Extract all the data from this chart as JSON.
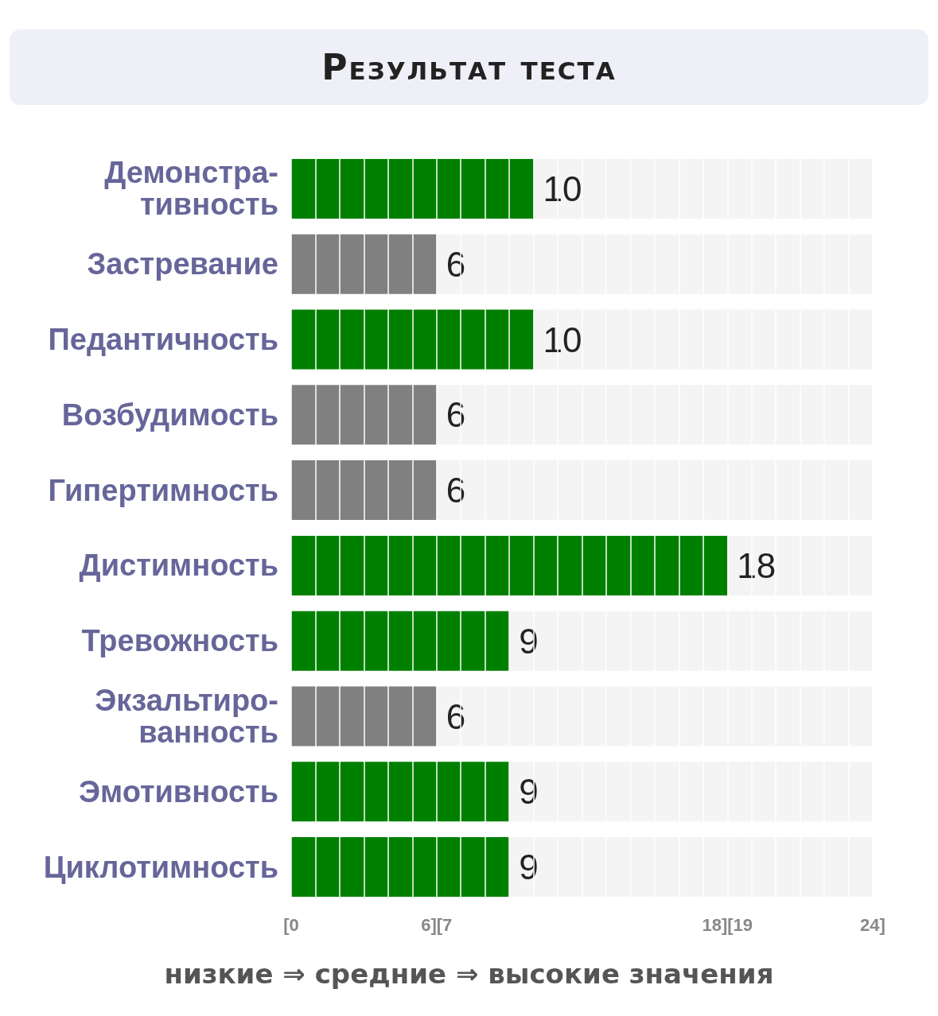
{
  "chart_data": {
    "type": "bar",
    "orientation": "horizontal",
    "title": "Результат теста",
    "categories": [
      "Демонстра-\nтивность",
      "Застревание",
      "Педантичность",
      "Возбудимость",
      "Гипертимность",
      "Дистимность",
      "Тревожность",
      "Экзальтиро-\nванность",
      "Эмотивность",
      "Циклотимность"
    ],
    "values": [
      10,
      6,
      10,
      6,
      6,
      18,
      9,
      6,
      9,
      9
    ],
    "colors": [
      "#008000",
      "#808080",
      "#008000",
      "#808080",
      "#808080",
      "#008000",
      "#008000",
      "#808080",
      "#008000",
      "#008000"
    ],
    "xlim": [
      0,
      24
    ],
    "xticks": [
      {
        "value": 0,
        "label": "[0"
      },
      {
        "value": 1,
        "label": null
      },
      {
        "value": 2,
        "label": null
      },
      {
        "value": 3,
        "label": null
      },
      {
        "value": 4,
        "label": null
      },
      {
        "value": 5,
        "label": null
      },
      {
        "value": 6,
        "label": "6][7"
      },
      {
        "value": 7,
        "label": null
      },
      {
        "value": 8,
        "label": null
      },
      {
        "value": 9,
        "label": null
      },
      {
        "value": 10,
        "label": null
      },
      {
        "value": 11,
        "label": null
      },
      {
        "value": 12,
        "label": null
      },
      {
        "value": 13,
        "label": null
      },
      {
        "value": 14,
        "label": null
      },
      {
        "value": 15,
        "label": null
      },
      {
        "value": 16,
        "label": null
      },
      {
        "value": 17,
        "label": null
      },
      {
        "value": 18,
        "label": "18][19"
      },
      {
        "value": 19,
        "label": null
      },
      {
        "value": 20,
        "label": null
      },
      {
        "value": 21,
        "label": null
      },
      {
        "value": 22,
        "label": null
      },
      {
        "value": 23,
        "label": null
      },
      {
        "value": 24,
        "label": "24]"
      }
    ],
    "grid": "x",
    "data_labels": true,
    "annotations": [
      "низкие ⇒ средние ⇒ высокие значения"
    ]
  }
}
